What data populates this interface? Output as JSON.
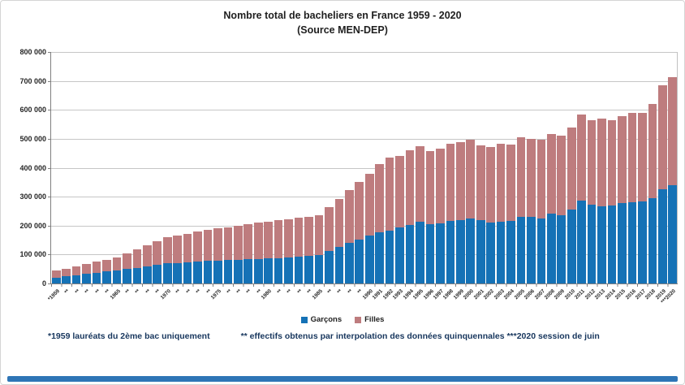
{
  "title": {
    "line1": "Nombre total de bacheliers  en France 1959 - 2020",
    "line2": "(Source MEN-DEP)"
  },
  "colors": {
    "garcons": "#1572b6",
    "filles": "#be7c7e",
    "bottom_bar": "#2e75b6"
  },
  "y_axis": {
    "ticks": [
      "800 000",
      "700 000",
      "600 000",
      "500 000",
      "400 000",
      "300 000",
      "200 000",
      "100 000",
      "0"
    ],
    "max": 800000
  },
  "legend": {
    "items": [
      {
        "label": "Garçons",
        "color": "#1572b6"
      },
      {
        "label": "Filles",
        "color": "#be7c7e"
      }
    ]
  },
  "footnote": {
    "part1": "*1959 lauréats du 2ème bac uniquement",
    "part2": "** effectifs obtenus par interpolation des données quinquennales ***2020 session de juin"
  },
  "chart_data": {
    "type": "bar",
    "stacked": true,
    "grid": true,
    "legend_position": "bottom",
    "title": "Nombre total de bacheliers en France 1959 - 2020 (Source MEN-DEP)",
    "ylim": [
      0,
      800000
    ],
    "years": [
      1959,
      1960,
      1961,
      1962,
      1963,
      1964,
      1965,
      1966,
      1967,
      1968,
      1969,
      1970,
      1971,
      1972,
      1973,
      1974,
      1975,
      1976,
      1977,
      1978,
      1979,
      1980,
      1981,
      1982,
      1983,
      1984,
      1985,
      1986,
      1987,
      1988,
      1989,
      1990,
      1991,
      1992,
      1993,
      1994,
      1995,
      1996,
      1997,
      1998,
      1999,
      2000,
      2001,
      2002,
      2003,
      2004,
      2005,
      2006,
      2007,
      2008,
      2009,
      2010,
      2011,
      2012,
      2013,
      2014,
      2015,
      2016,
      2017,
      2018,
      2019,
      2020
    ],
    "categories": [
      "*1959",
      "**",
      "**",
      "**",
      "**",
      "**",
      "1965",
      "**",
      "**",
      "**",
      "**",
      "1970",
      "**",
      "**",
      "**",
      "**",
      "1975",
      "**",
      "**",
      "**",
      "**",
      "1980",
      "**",
      "**",
      "**",
      "**",
      "1985",
      "**",
      "**",
      "**",
      "**",
      "1990",
      "1991",
      "1992",
      "1993",
      "1994",
      "1995",
      "1996",
      "1997",
      "1998",
      "1999",
      "2000",
      "2001",
      "2002",
      "2003",
      "2004",
      "2005",
      "2006",
      "2007",
      "2008",
      "2009",
      "2010",
      "2011",
      "2012",
      "2013",
      "2014",
      "2015",
      "2016",
      "2017",
      "2018",
      "2019",
      "***2020"
    ],
    "series": [
      {
        "name": "Garçons",
        "color": "#1572b6",
        "values": [
          21000,
          25000,
          29000,
          33000,
          37000,
          41000,
          45000,
          49800,
          54600,
          59400,
          64200,
          69000,
          71200,
          73400,
          75600,
          77800,
          80000,
          81200,
          82400,
          83600,
          84800,
          86000,
          88200,
          90400,
          92600,
          94800,
          97000,
          111000,
          125000,
          139000,
          153000,
          167000,
          177000,
          183000,
          195000,
          203000,
          212000,
          206000,
          208000,
          217000,
          219000,
          225000,
          218000,
          211000,
          214000,
          217000,
          231000,
          231000,
          226000,
          242000,
          236000,
          256000,
          287000,
          273000,
          267000,
          270000,
          277000,
          282000,
          284000,
          295000,
          326000,
          340000
        ]
      },
      {
        "name": "Filles",
        "color": "#be7c7e",
        "values": [
          23000,
          26700,
          30300,
          34000,
          37700,
          41300,
          45000,
          54400,
          63800,
          73200,
          82600,
          92000,
          95600,
          99200,
          102800,
          106400,
          110000,
          113600,
          117200,
          120800,
          124400,
          128000,
          130000,
          132000,
          134000,
          136000,
          138000,
          153000,
          168000,
          183000,
          198000,
          213000,
          236000,
          251000,
          246000,
          257000,
          262000,
          253000,
          258000,
          267000,
          269000,
          271000,
          258000,
          260000,
          268000,
          262000,
          273000,
          270000,
          271000,
          274000,
          274000,
          282000,
          296000,
          292000,
          302000,
          293000,
          302000,
          308000,
          306000,
          325000,
          358000,
          372000
        ]
      }
    ]
  }
}
